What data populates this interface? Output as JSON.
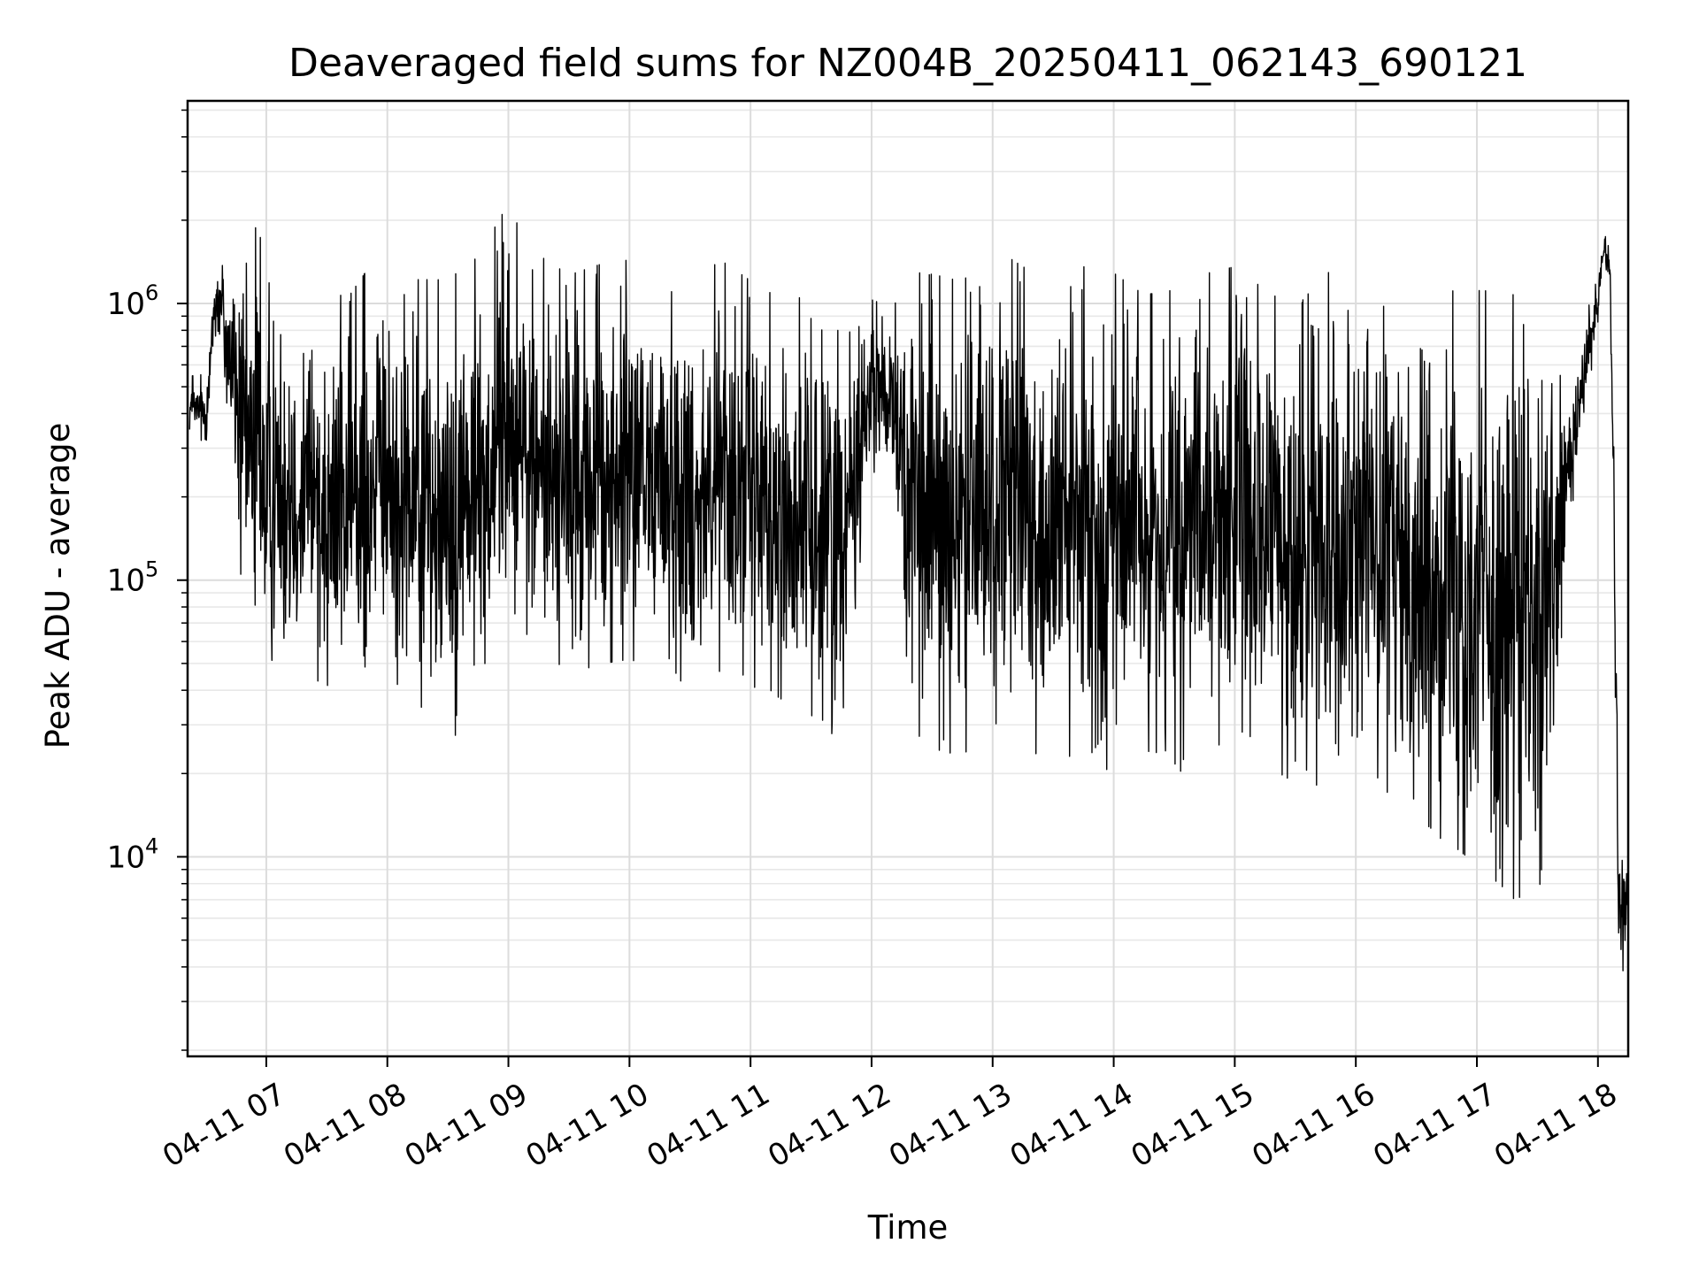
{
  "chart_data": {
    "type": "line",
    "title": "Deaveraged field sums for NZ004B_20250411_062143_690121",
    "xlabel": "Time",
    "ylabel": "Peak ADU - average",
    "xscale": "time",
    "yscale": "log",
    "xlim": [
      "2025-04-11 06:21",
      "2025-04-11 18:15"
    ],
    "ylim": [
      1900,
      5400000
    ],
    "grid": "major and minor, light gray",
    "legend": "none",
    "line_color": "#000000",
    "xticks": [
      {
        "t": "2025-04-11 07:00",
        "label": "04-11 07"
      },
      {
        "t": "2025-04-11 08:00",
        "label": "04-11 08"
      },
      {
        "t": "2025-04-11 09:00",
        "label": "04-11 09"
      },
      {
        "t": "2025-04-11 10:00",
        "label": "04-11 10"
      },
      {
        "t": "2025-04-11 11:00",
        "label": "04-11 11"
      },
      {
        "t": "2025-04-11 12:00",
        "label": "04-11 12"
      },
      {
        "t": "2025-04-11 13:00",
        "label": "04-11 13"
      },
      {
        "t": "2025-04-11 14:00",
        "label": "04-11 14"
      },
      {
        "t": "2025-04-11 15:00",
        "label": "04-11 15"
      },
      {
        "t": "2025-04-11 16:00",
        "label": "04-11 16"
      },
      {
        "t": "2025-04-11 17:00",
        "label": "04-11 17"
      },
      {
        "t": "2025-04-11 18:00",
        "label": "04-11 18"
      }
    ],
    "yticks": [
      {
        "value": 10000,
        "base": "10",
        "exp": "4"
      },
      {
        "value": 100000,
        "base": "10",
        "exp": "5"
      },
      {
        "value": 1000000,
        "base": "10",
        "exp": "6"
      }
    ],
    "series": [
      {
        "x": [
          "2025-04-11 06:22",
          "2025-04-11 06:30",
          "2025-04-11 06:35",
          "2025-04-11 06:40",
          "2025-04-11 06:45",
          "2025-04-11 06:50",
          "2025-04-11 06:55",
          "2025-04-11 07:00",
          "2025-04-11 07:10",
          "2025-04-11 07:20",
          "2025-04-11 07:30",
          "2025-04-11 07:40",
          "2025-04-11 07:50",
          "2025-04-11 08:00",
          "2025-04-11 08:15",
          "2025-04-11 08:30",
          "2025-04-11 08:45",
          "2025-04-11 09:00",
          "2025-04-11 09:15",
          "2025-04-11 09:30",
          "2025-04-11 09:45",
          "2025-04-11 10:00",
          "2025-04-11 10:15",
          "2025-04-11 10:30",
          "2025-04-11 10:45",
          "2025-04-11 11:00",
          "2025-04-11 11:15",
          "2025-04-11 11:30",
          "2025-04-11 11:45",
          "2025-04-11 12:00",
          "2025-04-11 12:10",
          "2025-04-11 12:20",
          "2025-04-11 12:30",
          "2025-04-11 12:45",
          "2025-04-11 13:00",
          "2025-04-11 13:15",
          "2025-04-11 13:30",
          "2025-04-11 13:45",
          "2025-04-11 14:00",
          "2025-04-11 14:15",
          "2025-04-11 14:30",
          "2025-04-11 14:45",
          "2025-04-11 15:00",
          "2025-04-11 15:15",
          "2025-04-11 15:30",
          "2025-04-11 15:45",
          "2025-04-11 16:00",
          "2025-04-11 16:15",
          "2025-04-11 16:30",
          "2025-04-11 16:45",
          "2025-04-11 17:00",
          "2025-04-11 17:15",
          "2025-04-11 17:30",
          "2025-04-11 17:40",
          "2025-04-11 17:50",
          "2025-04-11 18:00",
          "2025-04-11 18:03",
          "2025-04-11 18:06",
          "2025-04-11 18:08",
          "2025-04-11 18:10",
          "2025-04-11 18:15"
        ],
        "y": [
          420000,
          400000,
          1100000,
          800000,
          500000,
          300000,
          400000,
          200000,
          250000,
          220000,
          200000,
          180000,
          230000,
          220000,
          190000,
          170000,
          230000,
          400000,
          260000,
          220000,
          240000,
          250000,
          230000,
          200000,
          250000,
          210000,
          180000,
          170000,
          160000,
          480000,
          500000,
          170000,
          160000,
          150000,
          200000,
          170000,
          150000,
          140000,
          180000,
          150000,
          140000,
          160000,
          170000,
          140000,
          120000,
          160000,
          180000,
          120000,
          110000,
          100000,
          90000,
          80000,
          70000,
          120000,
          400000,
          1050000,
          1600000,
          1300000,
          200000,
          6000,
          7500
        ],
        "noise": [
          0.12,
          0.15,
          0.2,
          0.4,
          0.6,
          0.75,
          0.8,
          0.8,
          0.8,
          0.8,
          0.8,
          0.8,
          0.8,
          0.8,
          0.85,
          0.9,
          0.85,
          0.8,
          0.8,
          0.8,
          0.8,
          0.8,
          0.8,
          0.8,
          0.8,
          0.8,
          0.8,
          0.85,
          0.85,
          0.35,
          0.3,
          0.9,
          0.95,
          0.95,
          0.95,
          0.95,
          0.95,
          0.95,
          0.9,
          0.9,
          0.95,
          0.95,
          0.95,
          0.95,
          0.95,
          0.95,
          0.95,
          1.0,
          1.05,
          1.1,
          1.15,
          1.2,
          1.2,
          0.7,
          0.25,
          0.1,
          0.05,
          0.1,
          0.3,
          0.35,
          0.2
        ]
      }
    ]
  }
}
